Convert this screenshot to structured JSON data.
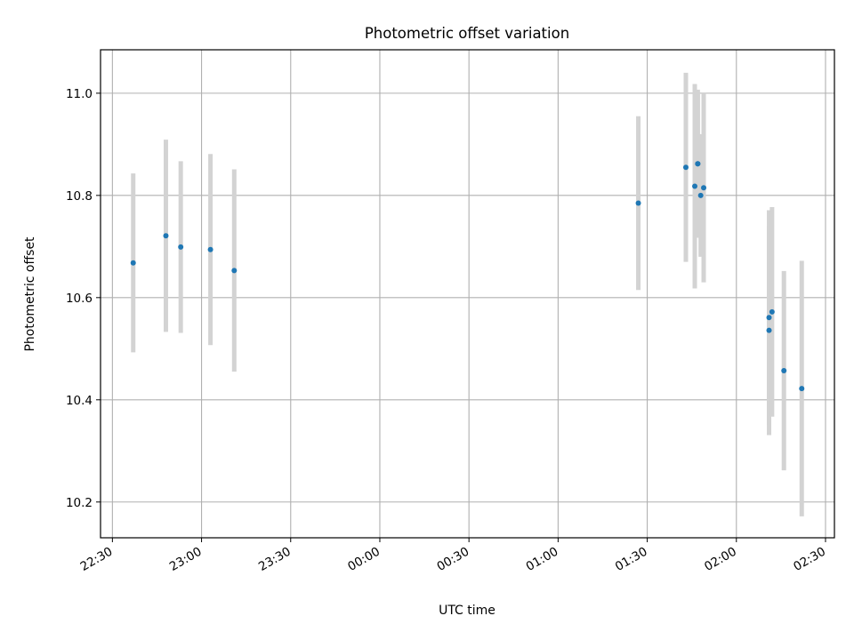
{
  "chart_data": {
    "type": "scatter",
    "title": "Photometric offset variation",
    "xlabel": "UTC time",
    "ylabel": "Photometric offset",
    "grid": true,
    "x_ticks": [
      "22:30",
      "23:00",
      "23:30",
      "00:00",
      "00:30",
      "01:00",
      "01:30",
      "02:00",
      "02:30"
    ],
    "y_ticks": [
      "10.2",
      "10.4",
      "10.6",
      "10.8",
      "11.0"
    ],
    "xlim": [
      "22:26",
      "02:33"
    ],
    "ylim": [
      10.13,
      11.085
    ],
    "marker_color": "#1f77b4",
    "errorbar_color": "#d3d3d3",
    "points": [
      {
        "x": "22:37",
        "y": 10.668,
        "yerr": 0.175
      },
      {
        "x": "22:48",
        "y": 10.721,
        "yerr": 0.188
      },
      {
        "x": "22:53",
        "y": 10.699,
        "yerr": 0.168
      },
      {
        "x": "23:03",
        "y": 10.694,
        "yerr": 0.187
      },
      {
        "x": "23:11",
        "y": 10.653,
        "yerr": 0.198
      },
      {
        "x": "01:27",
        "y": 10.785,
        "yerr": 0.17
      },
      {
        "x": "01:43",
        "y": 10.855,
        "yerr": 0.185
      },
      {
        "x": "01:46",
        "y": 10.818,
        "yerr": 0.2
      },
      {
        "x": "01:47",
        "y": 10.862,
        "yerr": 0.145
      },
      {
        "x": "01:47",
        "y": 10.862,
        "yerr": 0.14
      },
      {
        "x": "01:48",
        "y": 10.8,
        "yerr": 0.12
      },
      {
        "x": "01:49",
        "y": 10.815,
        "yerr": 0.185
      },
      {
        "x": "02:11",
        "y": 10.536,
        "yerr": 0.205
      },
      {
        "x": "02:11",
        "y": 10.561,
        "yerr": 0.21
      },
      {
        "x": "02:12",
        "y": 10.572,
        "yerr": 0.205
      },
      {
        "x": "02:16",
        "y": 10.457,
        "yerr": 0.195
      },
      {
        "x": "02:22",
        "y": 10.422,
        "yerr": 0.25
      }
    ]
  }
}
